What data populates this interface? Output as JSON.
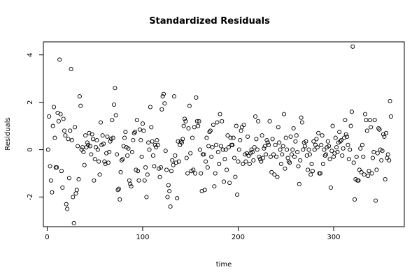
{
  "chart_data": {
    "type": "scatter",
    "title": "Standardized Residuals",
    "xlabel": "time",
    "ylabel": "Residuals",
    "xlim": [
      -4,
      374
    ],
    "ylim": [
      -3.25,
      4.55
    ],
    "x_ticks": [
      0,
      100,
      200,
      300
    ],
    "y_ticks": [
      -2,
      0,
      2,
      4
    ],
    "x_tick_labels": [
      "0",
      "100",
      "200",
      "300"
    ],
    "y_tick_labels": [
      "-2",
      "0",
      "2",
      "4"
    ],
    "grid": false,
    "legend": "none",
    "marker": "open-circle",
    "point_color": "#000000",
    "points": [
      [
        1,
        0.0
      ],
      [
        2,
        1.4
      ],
      [
        3,
        -0.7
      ],
      [
        4,
        -1.3
      ],
      [
        5,
        -1.8
      ],
      [
        6,
        1.0
      ],
      [
        7,
        1.8
      ],
      [
        8,
        0.5
      ],
      [
        9,
        -0.75
      ],
      [
        10,
        -0.75
      ],
      [
        11,
        1.55
      ],
      [
        12,
        1.2
      ],
      [
        13,
        3.8
      ],
      [
        14,
        1.5
      ],
      [
        15,
        -0.9
      ],
      [
        16,
        -1.6
      ],
      [
        17,
        1.3
      ],
      [
        18,
        0.8
      ],
      [
        19,
        0.6
      ],
      [
        20,
        -2.3
      ],
      [
        21,
        -2.5
      ],
      [
        22,
        0.45
      ],
      [
        23,
        -1.2
      ],
      [
        24,
        0.8
      ],
      [
        25,
        3.4
      ],
      [
        26,
        0.4
      ],
      [
        27,
        -2.0
      ],
      [
        28,
        -3.1
      ],
      [
        29,
        0.95
      ],
      [
        30,
        -1.85
      ],
      [
        31,
        -1.7
      ],
      [
        32,
        0.15
      ],
      [
        33,
        -1.25
      ],
      [
        34,
        2.25
      ],
      [
        35,
        1.85
      ],
      [
        36,
        0.0
      ],
      [
        37,
        0.1
      ],
      [
        38,
        -0.1
      ],
      [
        39,
        -0.65
      ],
      [
        40,
        0.6
      ],
      [
        41,
        0.1
      ],
      [
        42,
        0.3
      ],
      [
        43,
        0.2
      ],
      [
        44,
        0.7
      ],
      [
        45,
        0.15
      ],
      [
        46,
        -0.2
      ],
      [
        47,
        0.65
      ],
      [
        48,
        0.45
      ],
      [
        49,
        -1.3
      ],
      [
        50,
        -0.4
      ],
      [
        51,
        0.1
      ],
      [
        52,
        0.4
      ],
      [
        53,
        0.0
      ],
      [
        54,
        -0.5
      ],
      [
        55,
        -1.05
      ],
      [
        56,
        1.15
      ],
      [
        57,
        0.2
      ],
      [
        58,
        0.6
      ],
      [
        59,
        0.25
      ],
      [
        60,
        -0.5
      ],
      [
        61,
        -0.6
      ],
      [
        62,
        -0.15
      ],
      [
        63,
        0.55
      ],
      [
        64,
        -0.55
      ],
      [
        65,
        -0.1
      ],
      [
        66,
        0.35
      ],
      [
        67,
        0.45
      ],
      [
        68,
        1.25
      ],
      [
        69,
        0.5
      ],
      [
        70,
        1.9
      ],
      [
        71,
        2.6
      ],
      [
        72,
        1.45
      ],
      [
        73,
        -0.2
      ],
      [
        74,
        -1.7
      ],
      [
        75,
        -1.65
      ],
      [
        76,
        -2.1
      ],
      [
        77,
        -0.95
      ],
      [
        78,
        -0.45
      ],
      [
        79,
        -0.4
      ],
      [
        80,
        0.15
      ],
      [
        81,
        0.5
      ],
      [
        82,
        0.75
      ],
      [
        83,
        0.1
      ],
      [
        84,
        -0.25
      ],
      [
        85,
        0.05
      ],
      [
        86,
        -1.3
      ],
      [
        87,
        -1.45
      ],
      [
        88,
        -1.55
      ],
      [
        89,
        -0.1
      ],
      [
        90,
        0.4
      ],
      [
        91,
        0.7
      ],
      [
        92,
        0.75
      ],
      [
        93,
        -0.85
      ],
      [
        94,
        1.25
      ],
      [
        95,
        -0.9
      ],
      [
        96,
        -1.3
      ],
      [
        97,
        0.85
      ],
      [
        98,
        0.4
      ],
      [
        99,
        -0.3
      ],
      [
        100,
        1.1
      ],
      [
        101,
        0.8
      ],
      [
        102,
        -1.3
      ],
      [
        103,
        -0.75
      ],
      [
        104,
        -2.0
      ],
      [
        105,
        -1.05
      ],
      [
        106,
        0.3
      ],
      [
        107,
        0.0
      ],
      [
        108,
        1.8
      ],
      [
        109,
        0.95
      ],
      [
        110,
        0.35
      ],
      [
        111,
        -0.25
      ],
      [
        112,
        -0.7
      ],
      [
        113,
        0.2
      ],
      [
        114,
        0.1
      ],
      [
        115,
        0.4
      ],
      [
        116,
        0.2
      ],
      [
        117,
        -0.8
      ],
      [
        118,
        -1.15
      ],
      [
        119,
        -0.75
      ],
      [
        120,
        1.7
      ],
      [
        121,
        2.25
      ],
      [
        122,
        2.35
      ],
      [
        123,
        1.95
      ],
      [
        124,
        -0.05
      ],
      [
        125,
        -0.85
      ],
      [
        126,
        -2.0
      ],
      [
        127,
        -1.5
      ],
      [
        128,
        -1.75
      ],
      [
        129,
        -2.4
      ],
      [
        130,
        -0.9
      ],
      [
        131,
        -0.45
      ],
      [
        132,
        -0.65
      ],
      [
        133,
        2.25
      ],
      [
        134,
        -0.25
      ],
      [
        135,
        -0.55
      ],
      [
        136,
        -2.05
      ],
      [
        137,
        0.35
      ],
      [
        138,
        -0.5
      ],
      [
        139,
        0.2
      ],
      [
        140,
        0.35
      ],
      [
        141,
        0.3
      ],
      [
        142,
        0.45
      ],
      [
        143,
        1.0
      ],
      [
        144,
        1.3
      ],
      [
        145,
        1.2
      ],
      [
        146,
        -0.35
      ],
      [
        147,
        -1.0
      ],
      [
        148,
        0.9
      ],
      [
        149,
        1.85
      ],
      [
        150,
        -0.15
      ],
      [
        151,
        -0.9
      ],
      [
        152,
        0.5
      ],
      [
        153,
        -0.85
      ],
      [
        154,
        0.95
      ],
      [
        155,
        -1.0
      ],
      [
        156,
        2.2
      ],
      [
        157,
        1.2
      ],
      [
        158,
        1.0
      ],
      [
        159,
        1.2
      ],
      [
        160,
        0.0
      ],
      [
        161,
        -1.0
      ],
      [
        162,
        -1.75
      ],
      [
        163,
        -0.2
      ],
      [
        164,
        -0.2
      ],
      [
        165,
        -1.7
      ],
      [
        166,
        -0.5
      ],
      [
        167,
        0.5
      ],
      [
        168,
        -0.75
      ],
      [
        169,
        0.15
      ],
      [
        170,
        0.75
      ],
      [
        171,
        0.8
      ],
      [
        172,
        -0.3
      ],
      [
        173,
        0.1
      ],
      [
        174,
        1.05
      ],
      [
        175,
        -1.55
      ],
      [
        176,
        -1.0
      ],
      [
        177,
        0.2
      ],
      [
        178,
        1.15
      ],
      [
        179,
        -0.1
      ],
      [
        180,
        -0.6
      ],
      [
        181,
        1.5
      ],
      [
        182,
        0.15
      ],
      [
        183,
        1.2
      ],
      [
        184,
        0.0
      ],
      [
        185,
        -1.35
      ],
      [
        186,
        -0.4
      ],
      [
        187,
        0.0
      ],
      [
        188,
        -0.85
      ],
      [
        189,
        0.6
      ],
      [
        190,
        0.1
      ],
      [
        191,
        -1.4
      ],
      [
        192,
        0.5
      ],
      [
        193,
        0.2
      ],
      [
        194,
        0.2
      ],
      [
        195,
        0.5
      ],
      [
        196,
        -0.35
      ],
      [
        197,
        -1.15
      ],
      [
        198,
        1.0
      ],
      [
        199,
        -1.9
      ],
      [
        200,
        -0.5
      ],
      [
        201,
        0.0
      ],
      [
        202,
        0.4
      ],
      [
        203,
        0.8
      ],
      [
        204,
        0.95
      ],
      [
        205,
        -0.6
      ],
      [
        206,
        1.05
      ],
      [
        207,
        -0.2
      ],
      [
        208,
        -0.5
      ],
      [
        209,
        -0.15
      ],
      [
        210,
        0.55
      ],
      [
        211,
        -0.25
      ],
      [
        212,
        -0.6
      ],
      [
        213,
        -0.15
      ],
      [
        214,
        0.0
      ],
      [
        215,
        -0.1
      ],
      [
        216,
        -0.45
      ],
      [
        217,
        0.1
      ],
      [
        218,
        1.4
      ],
      [
        219,
        0.45
      ],
      [
        220,
        0.0
      ],
      [
        221,
        1.2
      ],
      [
        222,
        -0.3
      ],
      [
        223,
        -0.4
      ],
      [
        224,
        -0.5
      ],
      [
        225,
        0.6
      ],
      [
        226,
        -0.35
      ],
      [
        227,
        0.05
      ],
      [
        228,
        0.15
      ],
      [
        229,
        -0.2
      ],
      [
        230,
        0.4
      ],
      [
        231,
        0.3
      ],
      [
        232,
        0.2
      ],
      [
        233,
        1.2
      ],
      [
        234,
        -0.3
      ],
      [
        235,
        -0.95
      ],
      [
        236,
        0.45
      ],
      [
        237,
        -0.2
      ],
      [
        238,
        -1.05
      ],
      [
        239,
        0.2
      ],
      [
        240,
        -0.3
      ],
      [
        241,
        -1.15
      ],
      [
        242,
        0.95
      ],
      [
        243,
        0.3
      ],
      [
        244,
        0.0
      ],
      [
        245,
        -0.6
      ],
      [
        246,
        -0.2
      ],
      [
        247,
        0.15
      ],
      [
        248,
        1.5
      ],
      [
        249,
        -0.8
      ],
      [
        250,
        0.5
      ],
      [
        251,
        0.0
      ],
      [
        252,
        -0.35
      ],
      [
        253,
        -0.5
      ],
      [
        254,
        -0.55
      ],
      [
        255,
        0.55
      ],
      [
        256,
        -0.2
      ],
      [
        257,
        0.0
      ],
      [
        258,
        0.9
      ],
      [
        259,
        -0.3
      ],
      [
        260,
        0.35
      ],
      [
        261,
        0.6
      ],
      [
        262,
        -0.1
      ],
      [
        263,
        -0.7
      ],
      [
        264,
        -1.45
      ],
      [
        265,
        -0.45
      ],
      [
        266,
        1.35
      ],
      [
        267,
        1.15
      ],
      [
        268,
        0.0
      ],
      [
        269,
        0.3
      ],
      [
        270,
        0.15
      ],
      [
        271,
        0.35
      ],
      [
        272,
        -0.25
      ],
      [
        273,
        -0.85
      ],
      [
        274,
        0.0
      ],
      [
        275,
        -0.2
      ],
      [
        276,
        -1.05
      ],
      [
        277,
        -0.6
      ],
      [
        278,
        -0.9
      ],
      [
        279,
        0.35
      ],
      [
        280,
        0.0
      ],
      [
        281,
        0.2
      ],
      [
        282,
        0.45
      ],
      [
        283,
        0.1
      ],
      [
        284,
        0.7
      ],
      [
        285,
        -1.0
      ],
      [
        286,
        -1.0
      ],
      [
        287,
        0.2
      ],
      [
        288,
        0.6
      ],
      [
        289,
        -0.6
      ],
      [
        290,
        0.0
      ],
      [
        291,
        -0.25
      ],
      [
        292,
        -0.2
      ],
      [
        293,
        0.1
      ],
      [
        294,
        0.35
      ],
      [
        295,
        0.15
      ],
      [
        296,
        -0.4
      ],
      [
        297,
        -1.6
      ],
      [
        298,
        -0.05
      ],
      [
        299,
        1.0
      ],
      [
        300,
        -0.3
      ],
      [
        301,
        -0.15
      ],
      [
        302,
        0.5
      ],
      [
        303,
        0.1
      ],
      [
        304,
        -0.1
      ],
      [
        305,
        0.3
      ],
      [
        306,
        0.75
      ],
      [
        307,
        0.35
      ],
      [
        308,
        0.4
      ],
      [
        309,
        -0.25
      ],
      [
        310,
        0.05
      ],
      [
        311,
        0.5
      ],
      [
        312,
        1.25
      ],
      [
        313,
        0.65
      ],
      [
        314,
        0.55
      ],
      [
        315,
        0.2
      ],
      [
        316,
        -0.4
      ],
      [
        317,
        0.0
      ],
      [
        318,
        1.0
      ],
      [
        319,
        1.6
      ],
      [
        320,
        4.35
      ],
      [
        321,
        -0.55
      ],
      [
        322,
        -2.1
      ],
      [
        323,
        -1.25
      ],
      [
        324,
        -0.3
      ],
      [
        325,
        -1.3
      ],
      [
        326,
        -1.3
      ],
      [
        327,
        -0.85
      ],
      [
        328,
        0.05
      ],
      [
        329,
        -0.95
      ],
      [
        330,
        0.2
      ],
      [
        331,
        -0.3
      ],
      [
        332,
        -1.05
      ],
      [
        333,
        1.5
      ],
      [
        334,
        1.25
      ],
      [
        335,
        0.8
      ],
      [
        336,
        -1.1
      ],
      [
        337,
        -0.9
      ],
      [
        338,
        1.25
      ],
      [
        339,
        0.95
      ],
      [
        340,
        -1.0
      ],
      [
        341,
        -0.35
      ],
      [
        342,
        -0.1
      ],
      [
        343,
        1.25
      ],
      [
        344,
        -2.15
      ],
      [
        345,
        -0.85
      ],
      [
        346,
        -0.15
      ],
      [
        347,
        0.9
      ],
      [
        348,
        0.85
      ],
      [
        349,
        0.0
      ],
      [
        350,
        -0.45
      ],
      [
        351,
        -0.05
      ],
      [
        352,
        0.65
      ],
      [
        353,
        0.55
      ],
      [
        354,
        -1.25
      ],
      [
        355,
        0.7
      ],
      [
        356,
        -0.35
      ],
      [
        357,
        -0.2
      ],
      [
        358,
        -0.45
      ],
      [
        359,
        2.05
      ],
      [
        360,
        1.4
      ]
    ]
  }
}
